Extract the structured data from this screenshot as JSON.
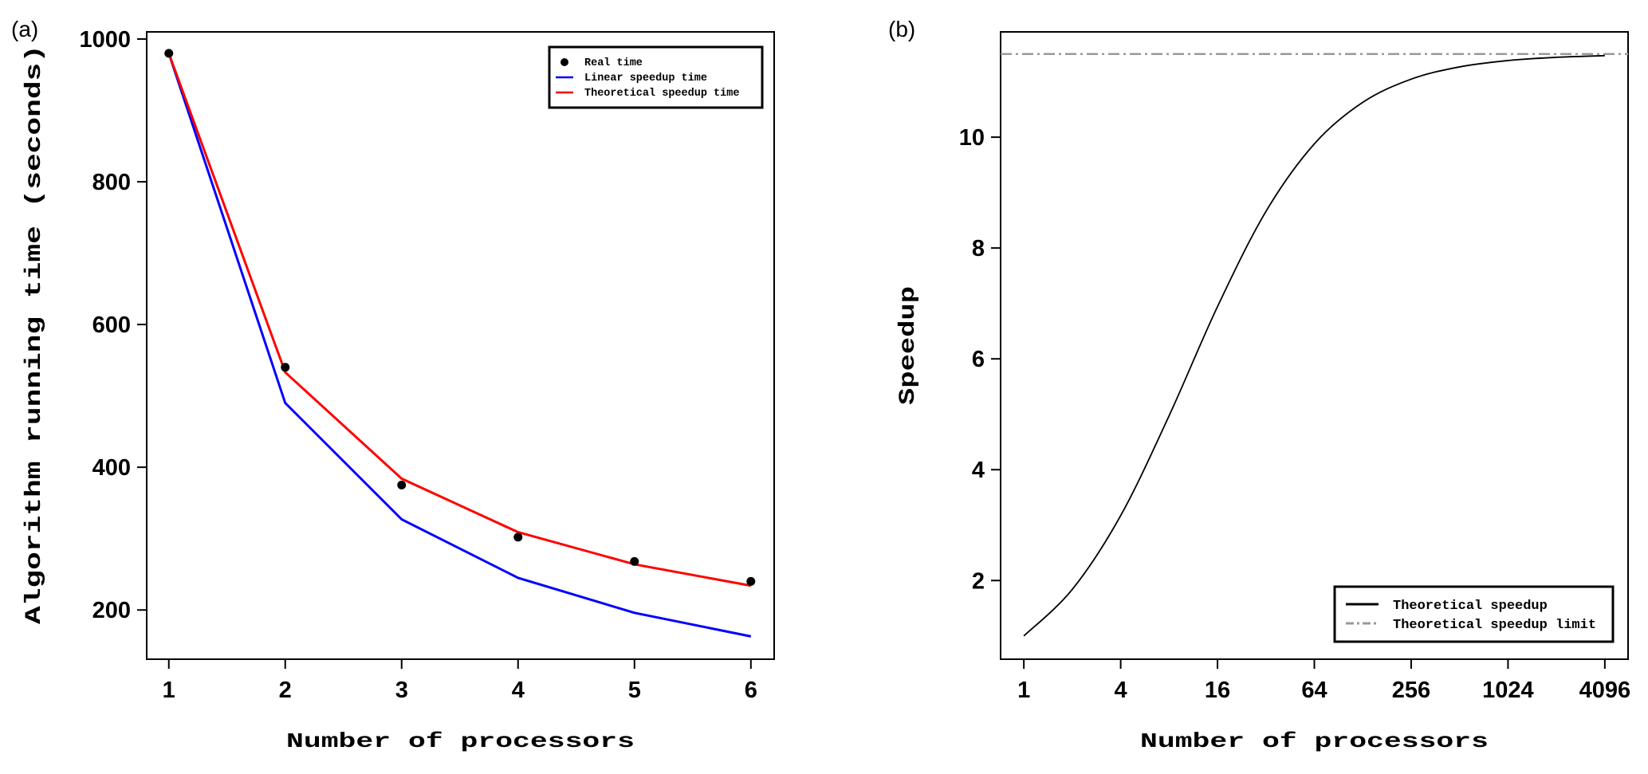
{
  "chart_data": [
    {
      "panel_label": "(a)",
      "type": "line",
      "xlabel": "Number of processors",
      "ylabel": "Algorithm running time (seconds)",
      "x": [
        1,
        2,
        3,
        4,
        5,
        6
      ],
      "xlim": [
        0.81,
        6.2
      ],
      "ylim": [
        131,
        1010
      ],
      "xticks": [
        1,
        2,
        3,
        4,
        5,
        6
      ],
      "yticks": [
        200,
        400,
        600,
        800,
        1000
      ],
      "grid": false,
      "legend_position": "top-right",
      "series": [
        {
          "name": "Real time",
          "kind": "points",
          "color": "#000000",
          "values": [
            980,
            540,
            375,
            302,
            268,
            240
          ]
        },
        {
          "name": "Linear speedup time",
          "kind": "line",
          "color": "#0000ff",
          "values": [
            980,
            490,
            327,
            245,
            196,
            163
          ]
        },
        {
          "name": "Theoretical speedup time",
          "kind": "line",
          "color": "#ff0000",
          "values": [
            980,
            533,
            384,
            309,
            264,
            234
          ]
        }
      ]
    },
    {
      "panel_label": "(b)",
      "type": "line",
      "xscale": "log2",
      "xlabel": "Number of processors",
      "ylabel": "Speedup",
      "xlim_log2": [
        -0.48,
        12.48
      ],
      "ylim": [
        0.58,
        11.9
      ],
      "xticks": [
        1,
        4,
        16,
        64,
        256,
        1024,
        4096
      ],
      "yticks": [
        2,
        4,
        6,
        8,
        10
      ],
      "grid": false,
      "legend_position": "bottom-right",
      "series": [
        {
          "name": "Theoretical speedup",
          "kind": "line",
          "color": "#000000",
          "x": [
            1,
            2,
            4,
            8,
            16,
            32,
            64,
            128,
            256,
            512,
            1024,
            2048,
            4096
          ],
          "values": [
            1.0,
            1.84,
            3.172,
            4.973,
            6.943,
            8.659,
            9.879,
            10.628,
            11.047,
            11.268,
            11.383,
            11.441,
            11.471
          ]
        },
        {
          "name": "Theoretical speedup limit",
          "kind": "hline",
          "color": "#999999",
          "value": 11.5
        }
      ]
    }
  ]
}
